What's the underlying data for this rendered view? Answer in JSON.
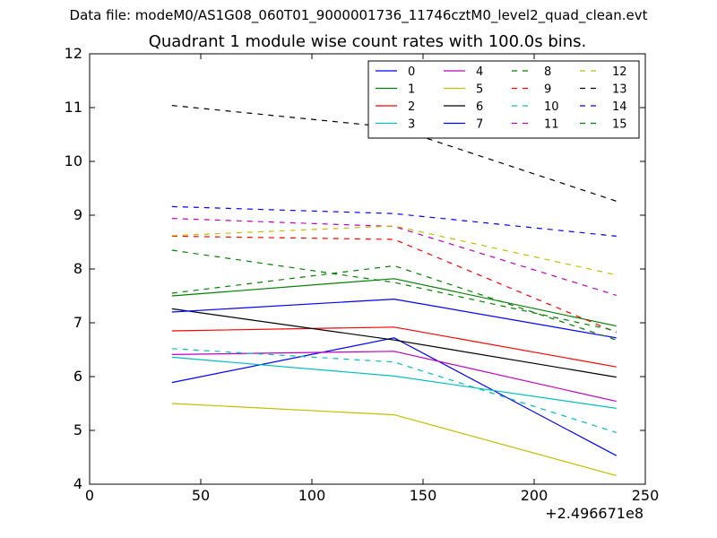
{
  "suptitle": "Data file: modeM0/AS1G08_060T01_9000001736_11746cztM0_level2_quad_clean.evt",
  "chart_data": {
    "type": "line",
    "title": "Quadrant 1 module wise count rates with 100.0s bins.",
    "xlabel": "",
    "ylabel": "",
    "x_offset_label": "+2.496671e8",
    "xlim": [
      0,
      250
    ],
    "ylim": [
      4,
      12
    ],
    "xticks": [
      0,
      50,
      100,
      150,
      200,
      250
    ],
    "yticks": [
      4,
      5,
      6,
      7,
      8,
      9,
      10,
      11,
      12
    ],
    "grid": false,
    "legend_position": "top-right",
    "legend_columns": 4,
    "x": [
      37,
      137,
      237
    ],
    "series": [
      {
        "name": "0",
        "style": "solid",
        "color": "#0000ff",
        "values": [
          5.89,
          6.72,
          4.53
        ]
      },
      {
        "name": "1",
        "style": "solid",
        "color": "#008000",
        "values": [
          7.5,
          7.82,
          6.94
        ]
      },
      {
        "name": "2",
        "style": "solid",
        "color": "#ff0000",
        "values": [
          6.85,
          6.92,
          6.18
        ]
      },
      {
        "name": "3",
        "style": "solid",
        "color": "#00bfbf",
        "values": [
          6.36,
          6.01,
          5.41
        ]
      },
      {
        "name": "4",
        "style": "solid",
        "color": "#bf00bf",
        "values": [
          6.41,
          6.47,
          5.54
        ]
      },
      {
        "name": "5",
        "style": "solid",
        "color": "#bfbf00",
        "values": [
          5.5,
          5.29,
          4.16
        ]
      },
      {
        "name": "6",
        "style": "solid",
        "color": "#000000",
        "values": [
          7.26,
          6.68,
          5.99
        ]
      },
      {
        "name": "7",
        "style": "solid",
        "color": "#0000ff",
        "values": [
          7.2,
          7.44,
          6.72
        ]
      },
      {
        "name": "8",
        "style": "dashed",
        "color": "#008000",
        "values": [
          7.55,
          8.06,
          6.68
        ]
      },
      {
        "name": "9",
        "style": "dashed",
        "color": "#ff0000",
        "values": [
          8.61,
          8.55,
          6.82
        ]
      },
      {
        "name": "10",
        "style": "dashed",
        "color": "#00bfbf",
        "values": [
          6.52,
          6.27,
          4.96
        ]
      },
      {
        "name": "11",
        "style": "dashed",
        "color": "#bf00bf",
        "values": [
          8.94,
          8.79,
          7.51
        ]
      },
      {
        "name": "12",
        "style": "dashed",
        "color": "#bfbf00",
        "values": [
          8.62,
          8.8,
          7.89
        ]
      },
      {
        "name": "13",
        "style": "dashed",
        "color": "#000000",
        "values": [
          11.04,
          10.63,
          9.26
        ]
      },
      {
        "name": "14",
        "style": "dashed",
        "color": "#0000ff",
        "values": [
          9.16,
          9.03,
          8.61
        ]
      },
      {
        "name": "15",
        "style": "dashed",
        "color": "#008000",
        "values": [
          8.35,
          7.75,
          6.85
        ]
      }
    ]
  }
}
